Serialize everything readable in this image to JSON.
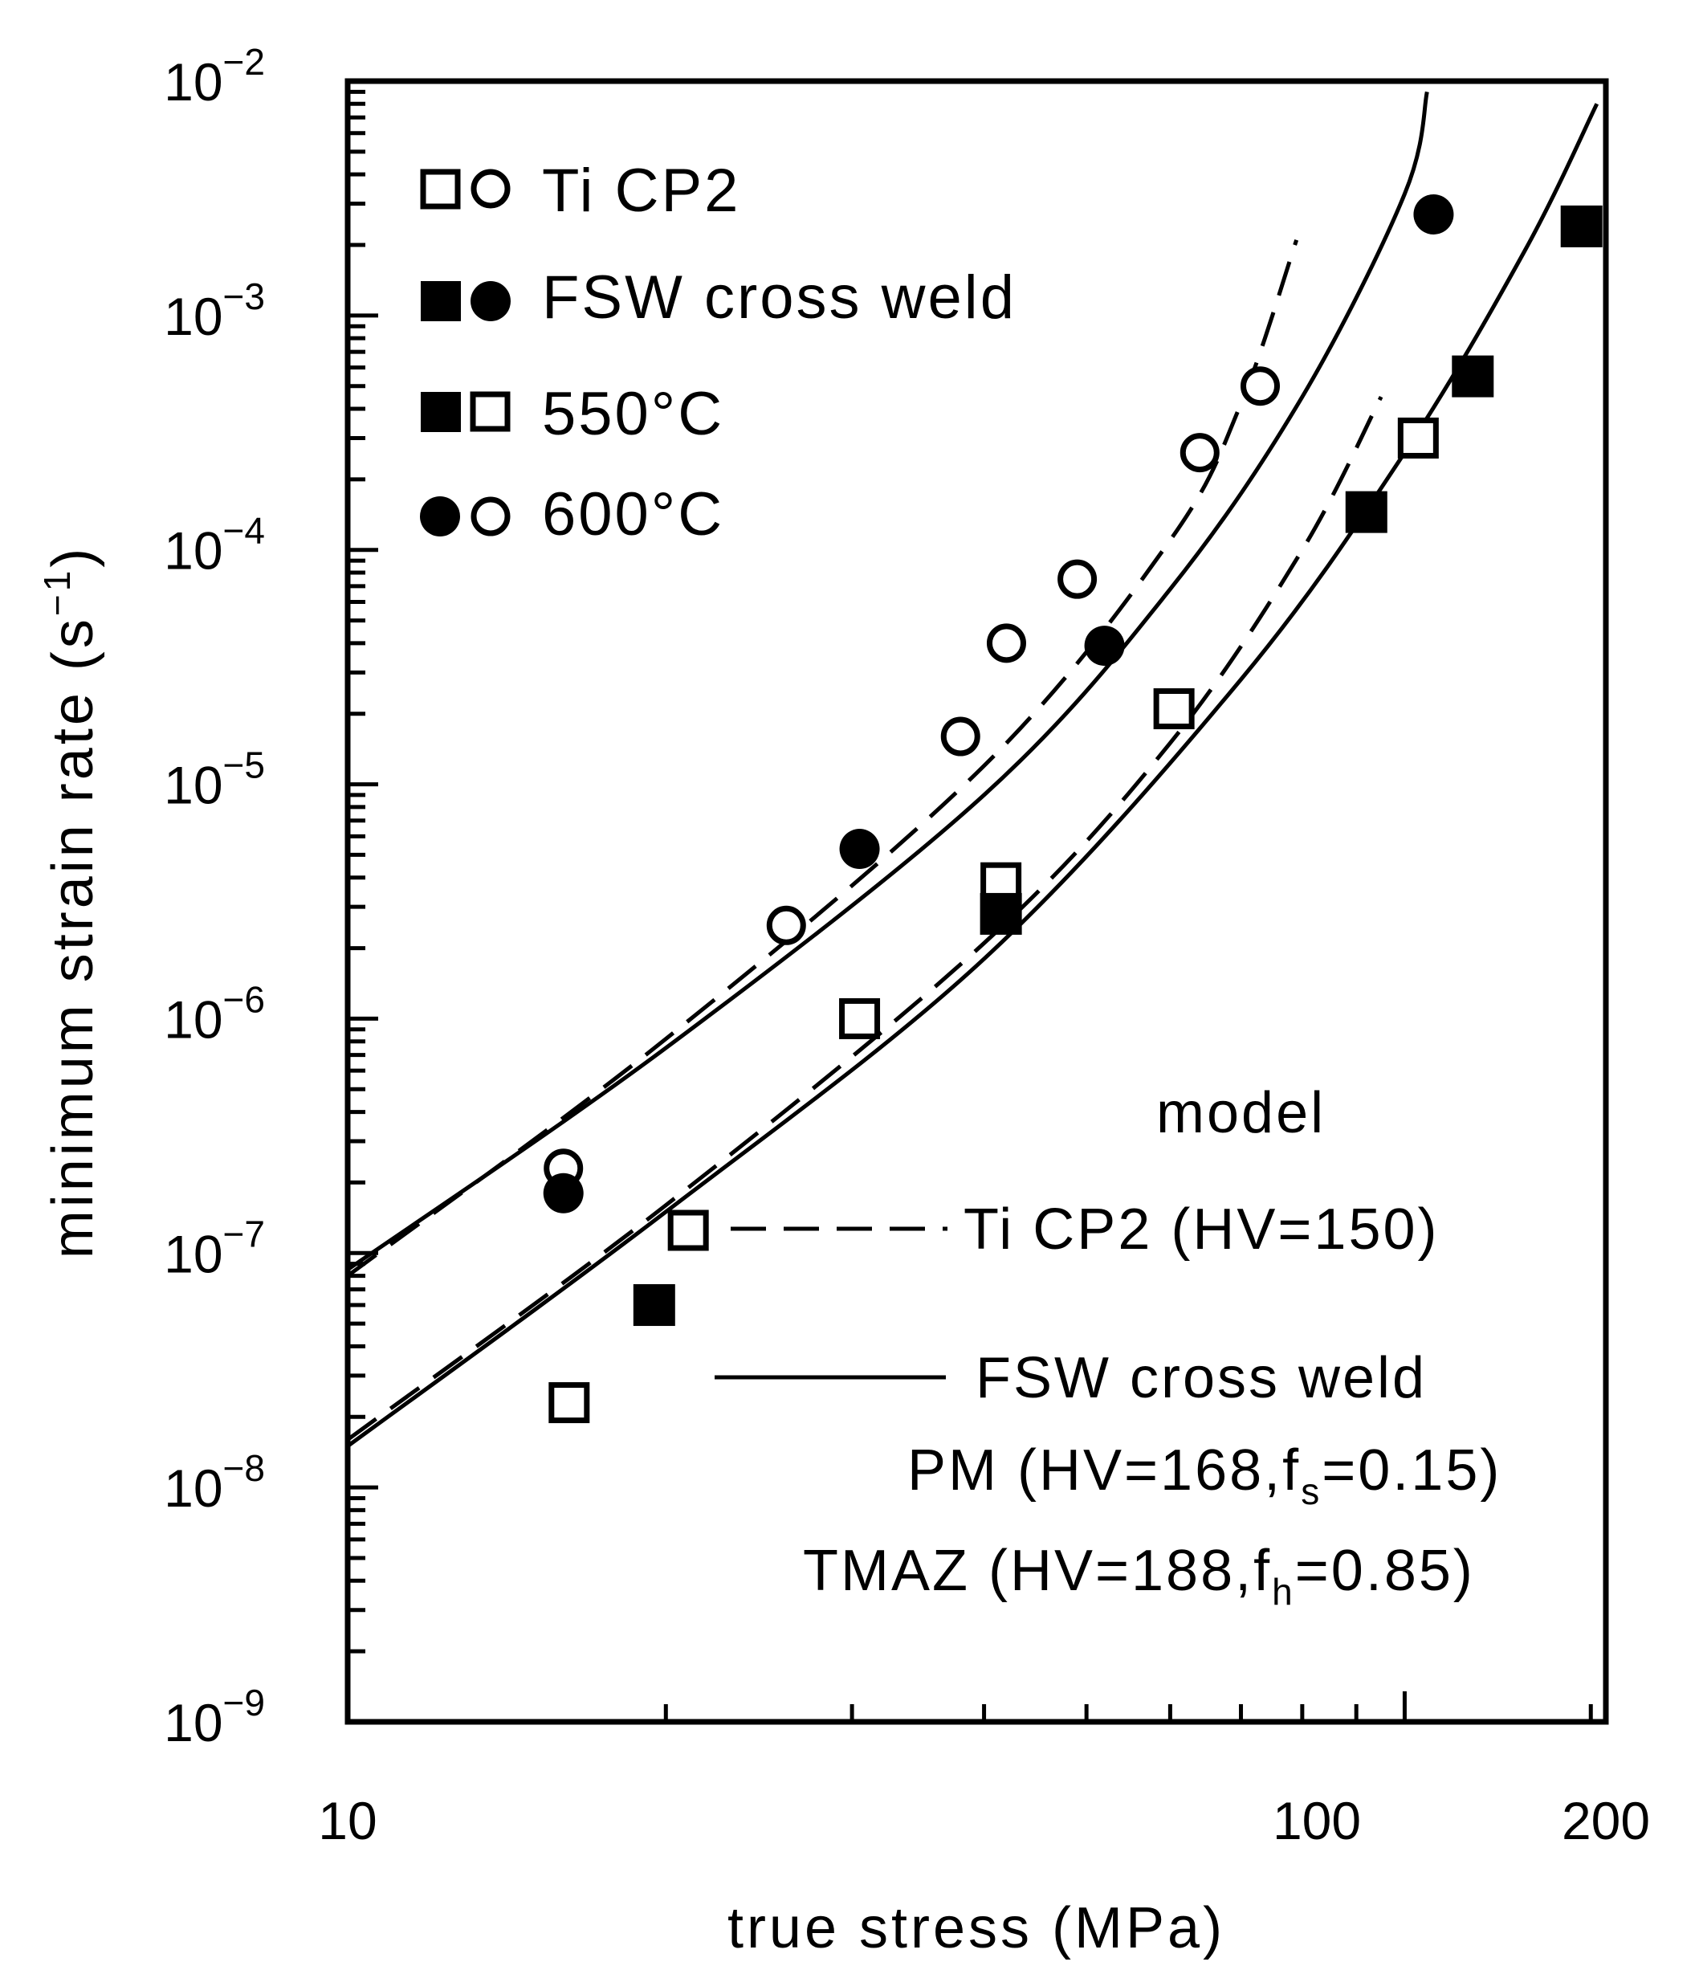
{
  "chart_data": {
    "type": "scatter",
    "title": "",
    "xlabel": "true stress (MPa)",
    "ylabel_main": "minimum strain rate (s",
    "ylabel_exp": "−1",
    "ylabel_close": ")",
    "xscale": "log",
    "yscale": "log",
    "xlim": [
      10,
      200
    ],
    "ylim": [
      1e-09,
      0.01
    ],
    "x_ticks": [
      {
        "value": 10,
        "label": "10"
      },
      {
        "value": 100,
        "label": "100"
      },
      {
        "value": 200,
        "label": "200"
      }
    ],
    "y_ticks": [
      {
        "value": 1e-09,
        "base": "10",
        "exp": "−9"
      },
      {
        "value": 1e-08,
        "base": "10",
        "exp": "−8"
      },
      {
        "value": 1e-07,
        "base": "10",
        "exp": "−7"
      },
      {
        "value": 1e-06,
        "base": "10",
        "exp": "−6"
      },
      {
        "value": 1e-05,
        "base": "10",
        "exp": "−5"
      },
      {
        "value": 0.0001,
        "base": "10",
        "exp": "−4"
      },
      {
        "value": 0.001,
        "base": "10",
        "exp": "−3"
      },
      {
        "value": 0.01,
        "base": "10",
        "exp": "−2"
      }
    ],
    "series": [
      {
        "name": "Ti CP2 550°C",
        "marker": "square-open",
        "points": [
          [
            16.2,
            2.3e-08
          ],
          [
            21,
            1.25e-07
          ],
          [
            30.5,
            1e-06
          ],
          [
            41.5,
            3.8e-06
          ],
          [
            60.5,
            2.1e-05
          ],
          [
            103,
            0.0003
          ]
        ]
      },
      {
        "name": "FSW cross weld 550°C",
        "marker": "square-filled",
        "points": [
          [
            19.5,
            6e-08
          ],
          [
            41.5,
            2.8e-06
          ],
          [
            92,
            0.000145
          ],
          [
            116,
            0.00055
          ],
          [
            147,
            0.0024
          ]
        ]
      },
      {
        "name": "Ti CP2 600°C",
        "marker": "circle-open",
        "points": [
          [
            16,
            2.3e-07
          ],
          [
            26,
            2.5e-06
          ],
          [
            38,
            1.6e-05
          ],
          [
            42,
            4e-05
          ],
          [
            49,
            7.5e-05
          ],
          [
            64,
            0.00026
          ],
          [
            73,
            0.0005
          ]
        ]
      },
      {
        "name": "FSW cross weld 600°C",
        "marker": "circle-filled",
        "points": [
          [
            16,
            1.8e-07
          ],
          [
            30.5,
            5.3e-06
          ],
          [
            52,
            3.9e-05
          ],
          [
            106.5,
            0.0027
          ]
        ]
      }
    ],
    "model_curves": [
      {
        "name": "Ti CP2 600°C model",
        "style": "dashed",
        "points": [
          [
            10,
            8e-08
          ],
          [
            20,
            8.2e-07
          ],
          [
            40,
            1.2e-05
          ],
          [
            60,
            0.00011
          ],
          [
            70,
            0.00042
          ],
          [
            79,
            0.0021
          ]
        ]
      },
      {
        "name": "FSW cross weld 600°C model",
        "style": "solid",
        "points": [
          [
            10,
            8.5e-08
          ],
          [
            20,
            7.5e-07
          ],
          [
            40,
            9e-06
          ],
          [
            60,
            6.8e-05
          ],
          [
            80,
            0.00045
          ],
          [
            100,
            0.0033
          ],
          [
            105,
            0.009
          ]
        ]
      },
      {
        "name": "Ti CP2 550°C model",
        "style": "dashed",
        "points": [
          [
            10,
            1.6e-08
          ],
          [
            20,
            1.6e-07
          ],
          [
            40,
            2.1e-06
          ],
          [
            60,
            1.5e-05
          ],
          [
            80,
            0.0001
          ],
          [
            95,
            0.00045
          ]
        ]
      },
      {
        "name": "FSW cross weld 550°C model",
        "style": "solid",
        "points": [
          [
            10,
            1.5e-08
          ],
          [
            20,
            1.5e-07
          ],
          [
            40,
            1.8e-06
          ],
          [
            70,
            2.8e-05
          ],
          [
            100,
            0.00026
          ],
          [
            130,
            0.0019
          ],
          [
            152,
            0.008
          ]
        ]
      }
    ]
  },
  "legend": {
    "ti_cp2": "Ti CP2",
    "fsw": "FSW cross weld",
    "t550": "550°C",
    "t600": "600°C"
  },
  "model_legend": {
    "header": "model",
    "dashed_label": "Ti CP2 (HV=150)",
    "solid_label": "FSW cross weld",
    "pm_text": "PM (HV=168,f",
    "pm_sub": "s",
    "pm_tail": "=0.15)",
    "tmaz_text": "TMAZ (HV=188,f",
    "tmaz_sub": "h",
    "tmaz_tail": "=0.85)"
  }
}
